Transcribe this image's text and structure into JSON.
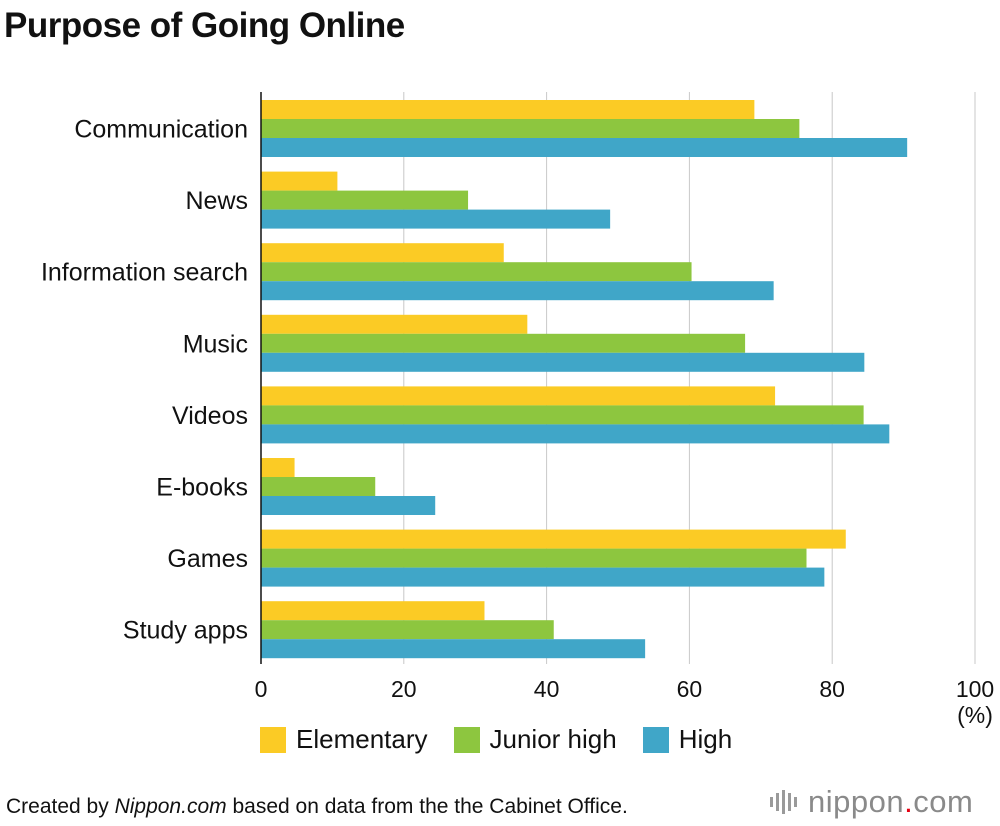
{
  "title": "Purpose of Going Online",
  "chart_data": {
    "type": "bar",
    "orientation": "horizontal",
    "categories": [
      "Communication",
      "News",
      "Information search",
      "Music",
      "Videos",
      "E-books",
      "Games",
      "Study apps"
    ],
    "series": [
      {
        "name": "Elementary",
        "color": "#FBCB25",
        "values": [
          69.1,
          10.7,
          34.0,
          37.3,
          72.0,
          4.7,
          81.9,
          31.3
        ]
      },
      {
        "name": "Junior high",
        "color": "#8DC63F",
        "values": [
          75.4,
          29.0,
          60.3,
          67.8,
          84.4,
          16.0,
          76.4,
          41.0
        ]
      },
      {
        "name": "High",
        "color": "#40A6C8",
        "values": [
          90.5,
          48.9,
          71.8,
          84.5,
          88.0,
          24.4,
          78.9,
          53.8
        ]
      }
    ],
    "xlim": [
      0,
      100
    ],
    "xticks": [
      0,
      20,
      40,
      60,
      80,
      100
    ],
    "xtick_labels": [
      "0",
      "20",
      "40",
      "60",
      "80",
      "100"
    ],
    "unit_label": "(%)",
    "grid": true,
    "legend_position": "bottom"
  },
  "legend": {
    "items": [
      "Elementary",
      "Junior high",
      "High"
    ]
  },
  "source": {
    "prefix": "Created by ",
    "site": "Nippon.com",
    "suffix": " based on data from the the Cabinet Office."
  },
  "logo": {
    "name": "nippon",
    "dot": ".",
    "tld": "com"
  }
}
